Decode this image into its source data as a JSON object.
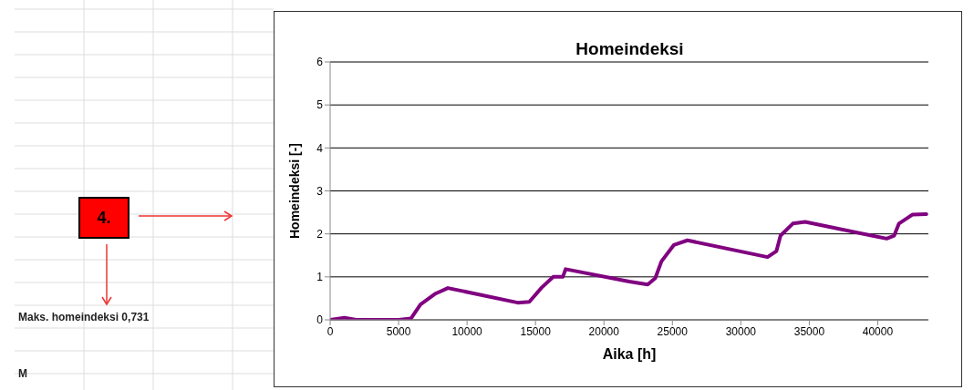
{
  "chart_data": {
    "type": "line",
    "title": "Homeindeksi",
    "xlabel": "Aika [h]",
    "ylabel": "Homeindeksi [-]",
    "x": [
      0,
      1040,
      1900,
      5000,
      5900,
      6600,
      7700,
      8600,
      13700,
      14550,
      15450,
      16300,
      17000,
      17200,
      21850,
      23200,
      23750,
      24200,
      25100,
      26100,
      31950,
      32600,
      32900,
      33800,
      34700,
      39550,
      40650,
      41200,
      41550,
      42550,
      43550
    ],
    "series": [
      {
        "color": "#800080",
        "values": [
          0,
          0.05,
          0,
          0,
          0.03,
          0.36,
          0.61,
          0.74,
          0.4,
          0.42,
          0.75,
          1.0,
          1.0,
          1.18,
          0.89,
          0.82,
          0.97,
          1.36,
          1.74,
          1.85,
          1.46,
          1.6,
          1.96,
          2.24,
          2.28,
          1.96,
          1.89,
          1.96,
          2.24,
          2.45,
          2.46
        ]
      }
    ],
    "xlim": [
      0,
      43700
    ],
    "xticks": [
      0,
      5000,
      10000,
      15000,
      20000,
      25000,
      30000,
      35000,
      40000
    ],
    "ylim": [
      0,
      6
    ],
    "yticks": [
      0,
      1,
      2,
      3,
      4,
      5,
      6
    ],
    "grid": "y",
    "marker": "none",
    "line_style": "solid",
    "annotations": [
      "4.",
      "Maks. homeindeksi 0,731",
      "M"
    ]
  }
}
